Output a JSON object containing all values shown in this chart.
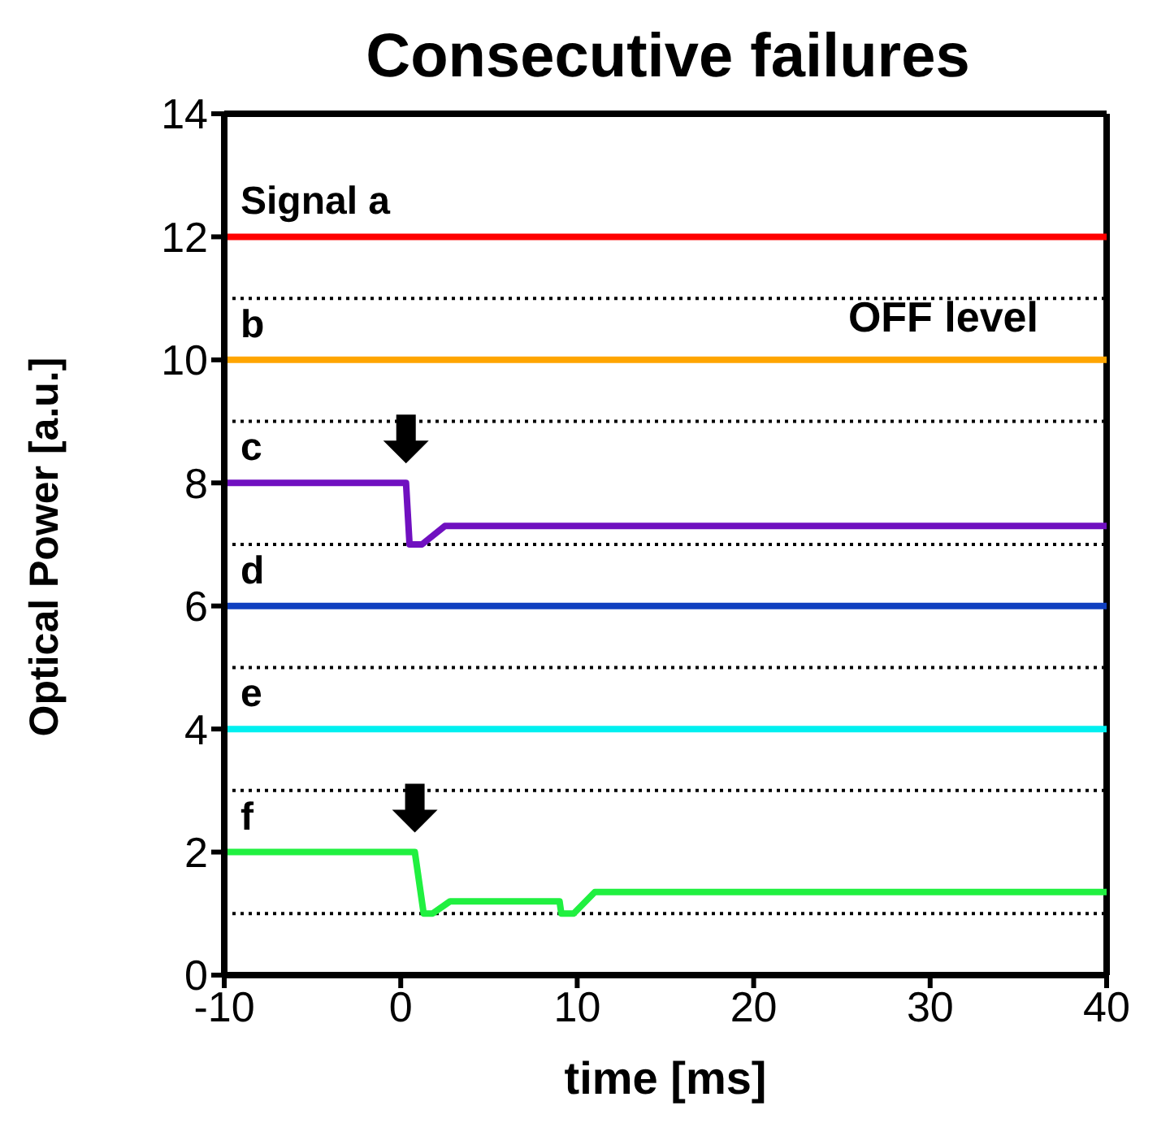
{
  "chart_data": {
    "type": "line",
    "title": "Consecutive failures",
    "xlabel": "time [ms]",
    "ylabel": "Optical Power [a.u.]",
    "xlim": [
      -10,
      40
    ],
    "xticks": [
      -10,
      0,
      10,
      20,
      30,
      40
    ],
    "ylim": [
      0,
      14
    ],
    "yticks": [
      0,
      2,
      4,
      6,
      8,
      10,
      12,
      14
    ],
    "grid": false,
    "legend": false,
    "marker": "none",
    "line_style": "solid",
    "series": [
      {
        "name": "Signal a",
        "color": "#ff0000",
        "x": [
          -10,
          40
        ],
        "values": [
          12,
          12
        ]
      },
      {
        "name": "b",
        "color": "#ffa500",
        "x": [
          -10,
          40
        ],
        "values": [
          10,
          10
        ]
      },
      {
        "name": "c",
        "color": "#7010c0",
        "x": [
          -10,
          0.3,
          0.5,
          1.2,
          2.5,
          40
        ],
        "values": [
          8,
          8,
          7.0,
          7.0,
          7.3,
          7.3
        ]
      },
      {
        "name": "d",
        "color": "#1040c0",
        "x": [
          -10,
          40
        ],
        "values": [
          6,
          6
        ]
      },
      {
        "name": "e",
        "color": "#00f0f0",
        "x": [
          -10,
          40
        ],
        "values": [
          4,
          4
        ]
      },
      {
        "name": "f",
        "color": "#20f040",
        "x": [
          -10,
          0.8,
          1.3,
          1.8,
          2.8,
          9,
          9.1,
          9.8,
          11,
          40
        ],
        "values": [
          2,
          2,
          1.0,
          1.0,
          1.2,
          1.2,
          1.0,
          1.0,
          1.35,
          1.35
        ]
      }
    ],
    "ref_lines": [
      {
        "axis": "y",
        "value": 11,
        "label": "OFF level",
        "color": "#000000",
        "line_style": "dotted"
      },
      {
        "axis": "y",
        "value": 9,
        "label": null,
        "color": "#000000",
        "line_style": "dotted"
      },
      {
        "axis": "y",
        "value": 7,
        "label": null,
        "color": "#000000",
        "line_style": "dotted"
      },
      {
        "axis": "y",
        "value": 5,
        "label": null,
        "color": "#000000",
        "line_style": "dotted"
      },
      {
        "axis": "y",
        "value": 3,
        "label": null,
        "color": "#000000",
        "line_style": "dotted"
      },
      {
        "axis": "y",
        "value": 1,
        "label": null,
        "color": "#000000",
        "line_style": "dotted"
      }
    ]
  }
}
